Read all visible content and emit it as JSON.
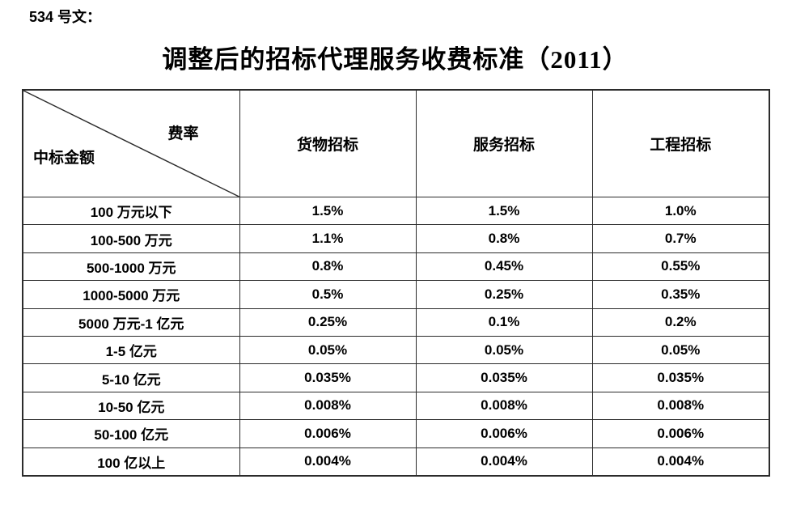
{
  "doc_number": "534 号文：",
  "title": "调整后的招标代理服务收费标准（2011）",
  "colors": {
    "background": "#ffffff",
    "text": "#000000",
    "table_border": "#2b2b2b"
  },
  "table": {
    "corner": {
      "fee_rate_label": "费率",
      "amount_label": "中标金额"
    },
    "columns": [
      "货物招标",
      "服务招标",
      "工程招标"
    ],
    "rows": [
      {
        "amount": "100 万元以下",
        "values": [
          "1.5%",
          "1.5%",
          "1.0%"
        ]
      },
      {
        "amount": "100-500 万元",
        "values": [
          "1.1%",
          "0.8%",
          "0.7%"
        ]
      },
      {
        "amount": "500-1000 万元",
        "values": [
          "0.8%",
          "0.45%",
          "0.55%"
        ]
      },
      {
        "amount": "1000-5000 万元",
        "values": [
          "0.5%",
          "0.25%",
          "0.35%"
        ]
      },
      {
        "amount": "5000 万元-1 亿元",
        "values": [
          "0.25%",
          "0.1%",
          "0.2%"
        ]
      },
      {
        "amount": "1-5 亿元",
        "values": [
          "0.05%",
          "0.05%",
          "0.05%"
        ]
      },
      {
        "amount": "5-10 亿元",
        "values": [
          "0.035%",
          "0.035%",
          "0.035%"
        ]
      },
      {
        "amount": "10-50 亿元",
        "values": [
          "0.008%",
          "0.008%",
          "0.008%"
        ]
      },
      {
        "amount": "50-100 亿元",
        "values": [
          "0.006%",
          "0.006%",
          "0.006%"
        ]
      },
      {
        "amount": "100 亿以上",
        "values": [
          "0.004%",
          "0.004%",
          "0.004%"
        ]
      }
    ]
  }
}
